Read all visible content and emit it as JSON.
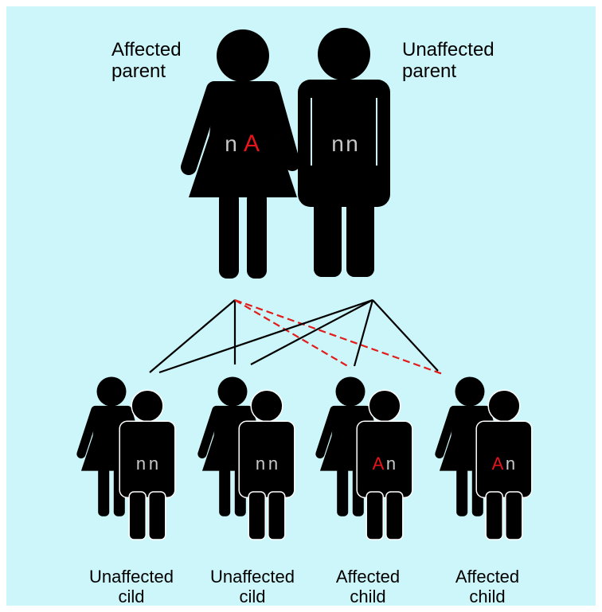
{
  "parents": [
    {
      "label_lines": [
        "Affected",
        "parent"
      ],
      "genotype": [
        "n",
        "A"
      ]
    },
    {
      "label_lines": [
        "Unaffected",
        "parent"
      ],
      "genotype": [
        "n",
        "n"
      ]
    }
  ],
  "children": [
    {
      "label_lines": [
        "Unaffected",
        "cild"
      ],
      "genotype": [
        "n",
        "n"
      ]
    },
    {
      "label_lines": [
        "Unaffected",
        "cild"
      ],
      "genotype": [
        "n",
        "n"
      ]
    },
    {
      "label_lines": [
        "Affected",
        "child"
      ],
      "genotype": [
        "A",
        "n"
      ]
    },
    {
      "label_lines": [
        "Affected",
        "child"
      ],
      "genotype": [
        "A",
        "n"
      ]
    }
  ]
}
